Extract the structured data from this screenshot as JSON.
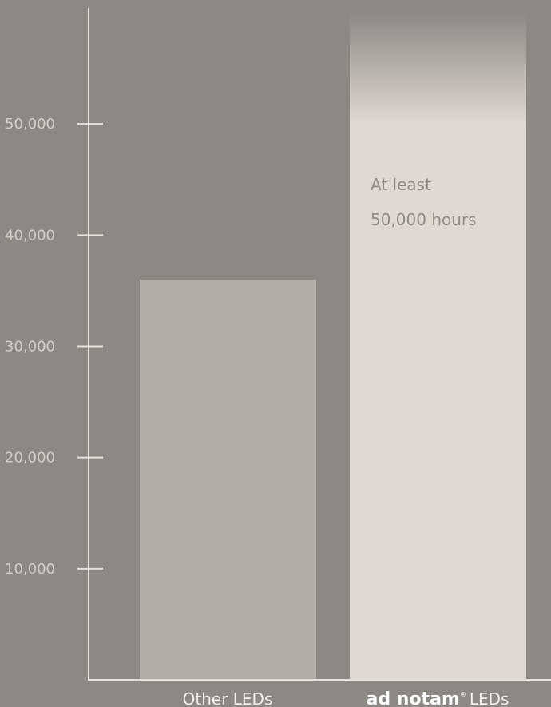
{
  "chart_data": {
    "type": "bar",
    "categories": [
      "Other LEDs",
      "LEDs"
    ],
    "values": [
      36000,
      60000
    ],
    "ylim": [
      0,
      60000
    ],
    "yticks": [
      10000,
      20000,
      30000,
      40000,
      50000
    ],
    "ytick_labels": [
      "10,000",
      "20,000",
      "30,000",
      "40,000",
      "50,000"
    ],
    "brand_name": "ad notam",
    "brand_mark": "®",
    "annotation_line1": "At least",
    "annotation_line2": "50,000 hours",
    "grid": false,
    "colors": {
      "background": "#8c8984",
      "axis": "#e6e1da",
      "bar_other": "#b0aca6",
      "bar_adnotam": "#e0d9d1"
    }
  }
}
